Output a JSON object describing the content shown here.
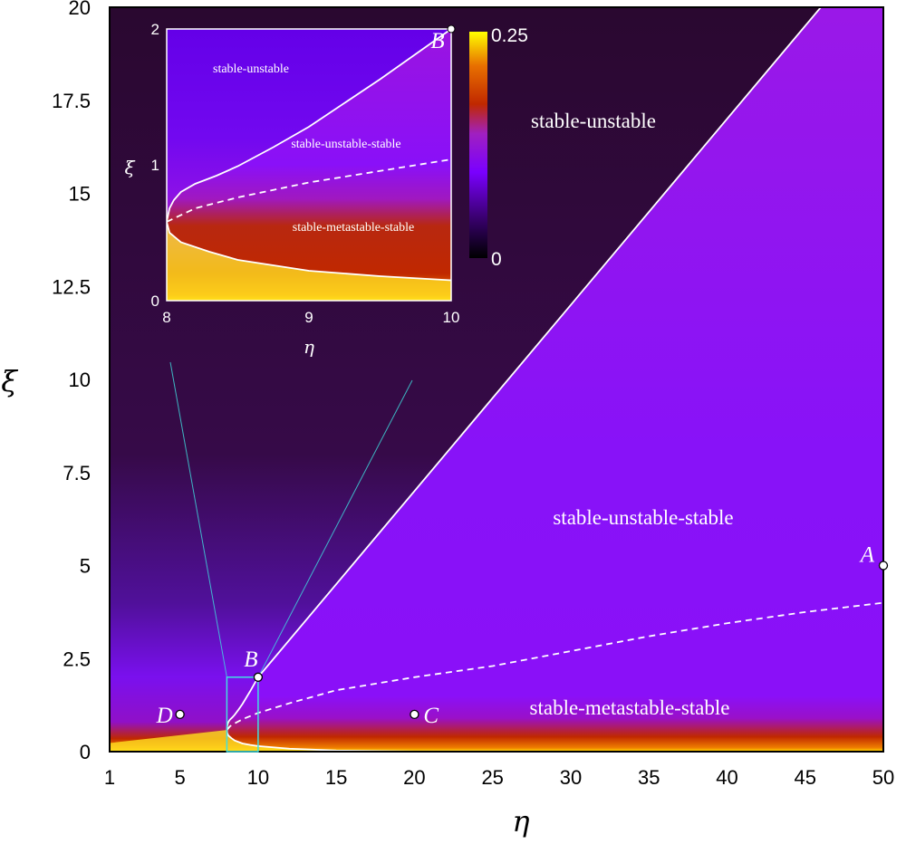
{
  "chart_data": {
    "type": "heatmap",
    "title": "",
    "xlabel": "η",
    "ylabel": "ξ",
    "xlim": [
      0.5,
      50
    ],
    "ylim": [
      0,
      20
    ],
    "xticks": [
      1,
      5,
      10,
      15,
      20,
      25,
      30,
      35,
      40,
      45,
      50
    ],
    "xtick_labels": [
      "1",
      "5",
      "10",
      "15",
      "20",
      "25",
      "30",
      "35",
      "40",
      "45",
      "50"
    ],
    "yticks": [
      0,
      2.5,
      5,
      7.5,
      10,
      12.5,
      15,
      17.5,
      20
    ],
    "ytick_labels": [
      "0",
      "2.5",
      "5",
      "7.5",
      "10",
      "12.5",
      "15",
      "17.5",
      "20"
    ],
    "grid": false,
    "curves": {
      "upper_boundary": [
        [
          8,
          0.58
        ],
        [
          8.02,
          0.68
        ],
        [
          8.05,
          0.74
        ],
        [
          8.1,
          0.8
        ],
        [
          8.2,
          0.86
        ],
        [
          8.35,
          0.92
        ],
        [
          8.5,
          0.99
        ],
        [
          8.75,
          1.13
        ],
        [
          9,
          1.28
        ],
        [
          9.5,
          1.63
        ],
        [
          10,
          2.0
        ],
        [
          46,
          20
        ]
      ],
      "lower_boundary": [
        [
          8,
          0.58
        ],
        [
          8.02,
          0.5
        ],
        [
          8.1,
          0.43
        ],
        [
          8.3,
          0.36
        ],
        [
          8.5,
          0.3
        ],
        [
          9,
          0.22
        ],
        [
          9.5,
          0.18
        ],
        [
          10,
          0.15
        ],
        [
          12,
          0.08
        ],
        [
          15,
          0.03
        ],
        [
          20,
          0.005
        ],
        [
          50,
          0.0
        ]
      ],
      "dashed_boundary": [
        [
          8,
          0.58
        ],
        [
          8.2,
          0.68
        ],
        [
          8.5,
          0.76
        ],
        [
          9,
          0.87
        ],
        [
          10,
          1.04
        ],
        [
          12,
          1.3
        ],
        [
          15,
          1.65
        ],
        [
          20,
          2.0
        ],
        [
          25,
          2.3
        ],
        [
          30,
          2.7
        ],
        [
          35,
          3.1
        ],
        [
          40,
          3.45
        ],
        [
          45,
          3.75
        ],
        [
          50,
          4.0
        ]
      ]
    },
    "points": [
      {
        "label": "A",
        "eta": 50,
        "xi": 5
      },
      {
        "label": "B",
        "eta": 10,
        "xi": 2
      },
      {
        "label": "C",
        "eta": 20,
        "xi": 1
      },
      {
        "label": "D",
        "eta": 5,
        "xi": 1
      }
    ],
    "region_labels": {
      "top": "stable-unstable",
      "middle": "stable-unstable-stable",
      "bottom": "stable-metastable-stable"
    },
    "colorbar": {
      "range": [
        0,
        0.25
      ],
      "max_label": "0.25",
      "min_label": "0",
      "colors": [
        "#000000",
        "#3a0070",
        "#7a00ff",
        "#a020c0",
        "#c02800",
        "#e87000",
        "#ffff00"
      ]
    },
    "zoom_box": {
      "xlim": [
        8,
        10
      ],
      "ylim": [
        0,
        2
      ],
      "color": "#40e0e0"
    },
    "inset": {
      "xlim": [
        8,
        10
      ],
      "ylim": [
        0,
        2
      ],
      "xticks": [
        8,
        9,
        10
      ],
      "xtick_labels": [
        "8",
        "9",
        "10"
      ],
      "yticks": [
        0,
        1,
        2
      ],
      "ytick_labels": [
        "0",
        "1",
        "2"
      ],
      "xlabel": "η",
      "ylabel": "ξ",
      "point_label": "B",
      "region_labels": {
        "top": "stable-unstable",
        "middle": "stable-unstable-stable",
        "bottom": "stable-metastable-stable"
      }
    }
  }
}
